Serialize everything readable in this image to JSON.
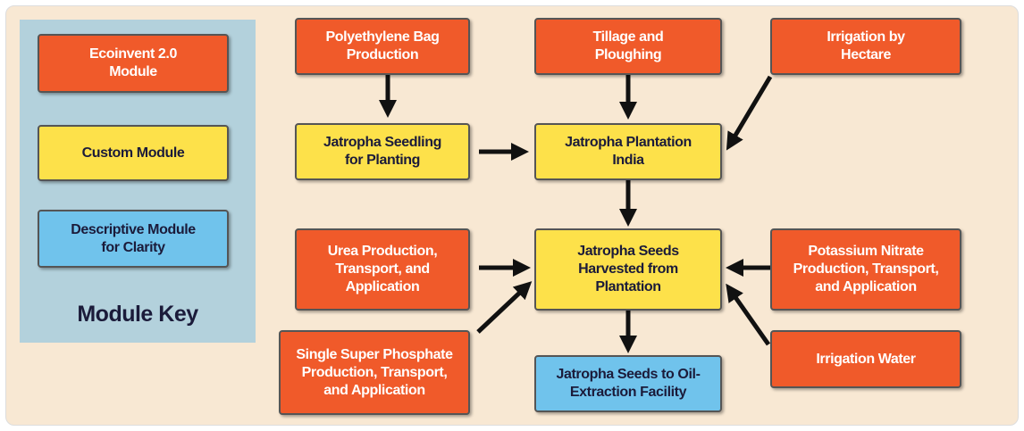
{
  "key": {
    "title": "Module Key",
    "items": [
      {
        "kind": "ecoinvent",
        "lines": [
          "Ecoinvent 2.0",
          "Module"
        ]
      },
      {
        "kind": "custom",
        "lines": [
          "Custom Module"
        ]
      },
      {
        "kind": "descriptive",
        "lines": [
          "Descriptive Module",
          "for Clarity"
        ]
      }
    ]
  },
  "nodes": [
    {
      "kind": "ecoinvent",
      "lines": [
        "Polyethylene Bag",
        "Production"
      ]
    },
    {
      "kind": "ecoinvent",
      "lines": [
        "Tillage and",
        "Ploughing"
      ]
    },
    {
      "kind": "ecoinvent",
      "lines": [
        "Irrigation by",
        "Hectare"
      ]
    },
    {
      "kind": "custom",
      "lines": [
        "Jatropha Seedling",
        "for Planting"
      ]
    },
    {
      "kind": "custom",
      "lines": [
        "Jatropha Plantation",
        "India"
      ]
    },
    {
      "kind": "ecoinvent",
      "lines": [
        "Urea Production,",
        "Transport, and",
        "Application"
      ]
    },
    {
      "kind": "custom",
      "lines": [
        "Jatropha Seeds",
        "Harvested from",
        "Plantation"
      ]
    },
    {
      "kind": "ecoinvent",
      "lines": [
        "Potassium Nitrate",
        "Production, Transport,",
        "and Application"
      ]
    },
    {
      "kind": "ecoinvent",
      "lines": [
        "Single Super Phosphate",
        "Production, Transport,",
        "and Application"
      ]
    },
    {
      "kind": "descriptive",
      "lines": [
        "Jatropha Seeds to Oil-",
        "Extraction Facility"
      ]
    },
    {
      "kind": "ecoinvent",
      "lines": [
        "Irrigation Water"
      ]
    }
  ]
}
